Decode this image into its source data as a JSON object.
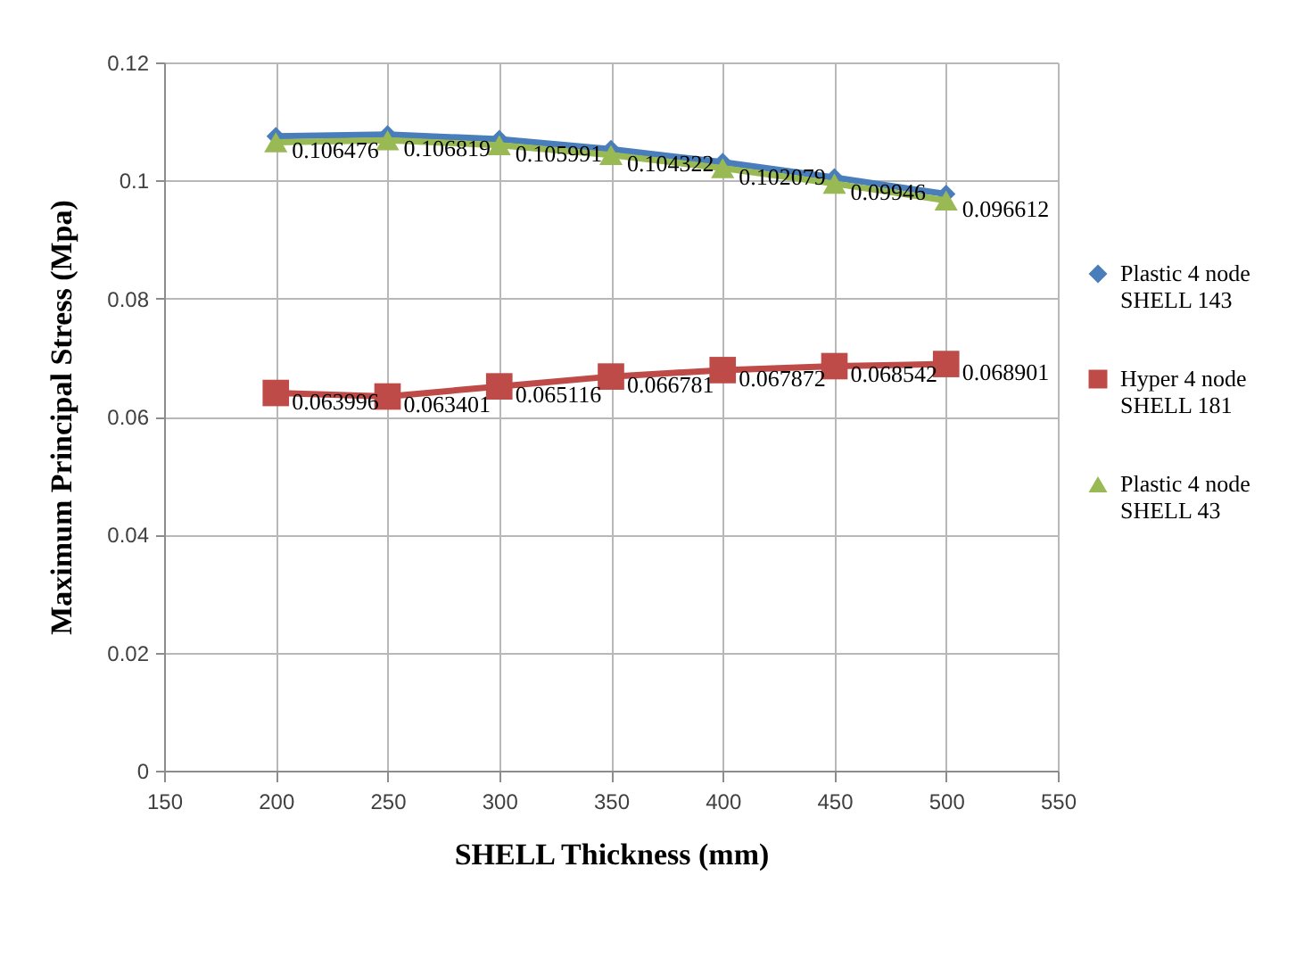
{
  "chart_data": {
    "type": "line",
    "xlabel": "SHELL Thickness (mm)",
    "ylabel": "Maximum Principal Stress (Mpa)",
    "x": [
      200,
      250,
      300,
      350,
      400,
      450,
      500
    ],
    "series": [
      {
        "name": "Plastic 4 node SHELL 143",
        "color": "#4a7ebb",
        "marker": "diamond",
        "values": [
          0.1075,
          0.1078,
          0.107,
          0.1053,
          0.1031,
          0.1005,
          0.0977
        ]
      },
      {
        "name": "Hyper 4 node SHELL 181",
        "color": "#be4b48",
        "marker": "square",
        "values": [
          0.063996,
          0.063401,
          0.065116,
          0.066781,
          0.067872,
          0.068542,
          0.068901
        ],
        "value_labels": [
          "0.063996",
          "0.063401",
          "0.065116",
          "0.066781",
          "0.067872",
          "0.068542",
          "0.068901"
        ]
      },
      {
        "name": "Plastic 4 node SHELL 43",
        "color": "#98b954",
        "marker": "triangle",
        "values": [
          0.106476,
          0.106819,
          0.105991,
          0.104322,
          0.102079,
          0.09946,
          0.096612
        ],
        "value_labels": [
          "0.106476",
          "0.106819",
          "0.105991",
          "0.104322",
          "0.102079",
          "0.09946",
          "0.096612"
        ]
      }
    ],
    "xlim": [
      150,
      550
    ],
    "xticks": [
      150,
      200,
      250,
      300,
      350,
      400,
      450,
      500,
      550
    ],
    "ylim": [
      0,
      0.12
    ],
    "yticks": [
      0,
      0.02,
      0.04,
      0.06,
      0.08,
      0.1,
      0.12
    ],
    "grid": true,
    "legend": "right",
    "line_style": "solid"
  }
}
